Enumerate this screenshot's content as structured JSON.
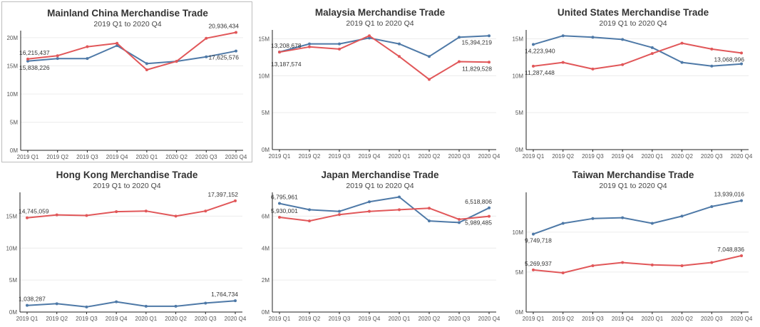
{
  "colors": {
    "blue": "#4e79a7",
    "red": "#e15759"
  },
  "chart_data": [
    {
      "type": "line",
      "title": "Mainland China Merchandise Trade",
      "subtitle": "2019 Q1 to 2020 Q4",
      "categories": [
        "2019 Q1",
        "2019 Q2",
        "2019 Q3",
        "2019 Q4",
        "2020 Q1",
        "2020 Q2",
        "2020 Q3",
        "2020 Q4"
      ],
      "ylim": [
        0,
        21000000
      ],
      "yticks": [
        0,
        5000000,
        10000000,
        15000000,
        20000000
      ],
      "ytick_labels": [
        "0M",
        "5M",
        "10M",
        "15M",
        "20M"
      ],
      "series": [
        {
          "color": "blue",
          "values": [
            15838226,
            16300000,
            16300000,
            18600000,
            15400000,
            15800000,
            16600000,
            17625576
          ]
        },
        {
          "color": "red",
          "values": [
            16215437,
            16800000,
            18400000,
            19000000,
            14300000,
            15800000,
            19900000,
            20936434
          ]
        }
      ],
      "labels": [
        {
          "text": "16,215,437",
          "series": 1,
          "point": 0,
          "pos": "above"
        },
        {
          "text": "15,838,226",
          "series": 0,
          "point": 0,
          "pos": "below"
        },
        {
          "text": "20,936,434",
          "series": 1,
          "point": 7,
          "pos": "above-left"
        },
        {
          "text": "17,625,576",
          "series": 0,
          "point": 7,
          "pos": "below"
        }
      ]
    },
    {
      "type": "line",
      "title": "Malaysia Merchandise Trade",
      "subtitle": "2019 Q1 to 2020 Q4",
      "categories": [
        "2019 Q1",
        "2019 Q2",
        "2019 Q3",
        "2019 Q4",
        "2020 Q1",
        "2020 Q2",
        "2020 Q3",
        "2020 Q4"
      ],
      "ylim": [
        0,
        16000000
      ],
      "yticks": [
        0,
        5000000,
        10000000,
        15000000
      ],
      "ytick_labels": [
        "0M",
        "5M",
        "10M",
        "15M"
      ],
      "series": [
        {
          "color": "blue",
          "values": [
            13208678,
            14300000,
            14300000,
            15100000,
            14300000,
            12600000,
            15200000,
            15394219
          ]
        },
        {
          "color": "red",
          "values": [
            13187574,
            13900000,
            13600000,
            15400000,
            12600000,
            9500000,
            11900000,
            11829528
          ]
        }
      ],
      "labels": [
        {
          "text": "13,208,678",
          "series": 0,
          "point": 0,
          "pos": "above"
        },
        {
          "text": "13,187,574",
          "series": 1,
          "point": 0,
          "pos": "below-far"
        },
        {
          "text": "15,394,219",
          "series": 0,
          "point": 7,
          "pos": "below"
        },
        {
          "text": "11,829,528",
          "series": 1,
          "point": 7,
          "pos": "below"
        }
      ]
    },
    {
      "type": "line",
      "title": "United States Merchandise Trade",
      "subtitle": "2019 Q1 to 2020 Q4",
      "categories": [
        "2019 Q1",
        "2019 Q2",
        "2019 Q3",
        "2019 Q4",
        "2020 Q1",
        "2020 Q2",
        "2020 Q3",
        "2020 Q4"
      ],
      "ylim": [
        0,
        16000000
      ],
      "yticks": [
        0,
        5000000,
        10000000,
        15000000
      ],
      "ytick_labels": [
        "0M",
        "5M",
        "10M",
        "15M"
      ],
      "series": [
        {
          "color": "blue",
          "values": [
            14223940,
            15400000,
            15200000,
            14900000,
            13800000,
            11800000,
            11300000,
            11600000
          ]
        },
        {
          "color": "red",
          "values": [
            11287448,
            11800000,
            10900000,
            11500000,
            13000000,
            14400000,
            13600000,
            13068996
          ]
        }
      ],
      "labels": [
        {
          "text": "14,223,940",
          "series": 0,
          "point": 0,
          "pos": "below"
        },
        {
          "text": "11,287,448",
          "series": 1,
          "point": 0,
          "pos": "below"
        },
        {
          "text": "13,068,996",
          "series": 1,
          "point": 7,
          "pos": "below"
        }
      ]
    },
    {
      "type": "line",
      "title": "Hong Kong Merchandise Trade",
      "subtitle": "2019 Q1 to 2020 Q4",
      "categories": [
        "2019 Q1",
        "2019 Q2",
        "2019 Q3",
        "2019 Q4",
        "2020 Q1",
        "2020 Q2",
        "2020 Q3",
        "2020 Q4"
      ],
      "ylim": [
        0,
        18500000
      ],
      "yticks": [
        0,
        5000000,
        10000000,
        15000000
      ],
      "ytick_labels": [
        "0M",
        "5M",
        "10M",
        "15M"
      ],
      "series": [
        {
          "color": "blue",
          "values": [
            1038287,
            1300000,
            800000,
            1600000,
            900000,
            900000,
            1400000,
            1764734
          ]
        },
        {
          "color": "red",
          "values": [
            14745059,
            15200000,
            15100000,
            15700000,
            15800000,
            15000000,
            15800000,
            17397152
          ]
        }
      ],
      "labels": [
        {
          "text": "14,745,059",
          "series": 1,
          "point": 0,
          "pos": "above"
        },
        {
          "text": "17,397,152",
          "series": 1,
          "point": 7,
          "pos": "above-left"
        },
        {
          "text": "1,038,287",
          "series": 0,
          "point": 0,
          "pos": "above"
        },
        {
          "text": "1,764,734",
          "series": 0,
          "point": 7,
          "pos": "above-left"
        }
      ]
    },
    {
      "type": "line",
      "title": "Japan Merchandise Trade",
      "subtitle": "2019 Q1 to 2020 Q4",
      "categories": [
        "2019 Q1",
        "2019 Q2",
        "2019 Q3",
        "2019 Q4",
        "2020 Q1",
        "2020 Q2",
        "2020 Q3",
        "2020 Q4"
      ],
      "ylim": [
        0,
        7400000
      ],
      "yticks": [
        0,
        2000000,
        4000000,
        6000000
      ],
      "ytick_labels": [
        "0M",
        "2M",
        "4M",
        "6M"
      ],
      "series": [
        {
          "color": "blue",
          "values": [
            6795961,
            6400000,
            6300000,
            6900000,
            7200000,
            5700000,
            5600000,
            6518806
          ]
        },
        {
          "color": "red",
          "values": [
            5930001,
            5700000,
            6100000,
            6300000,
            6400000,
            6500000,
            5800000,
            5989485
          ]
        }
      ],
      "labels": [
        {
          "text": "6,795,961",
          "series": 0,
          "point": 0,
          "pos": "above"
        },
        {
          "text": "5,930,001",
          "series": 1,
          "point": 0,
          "pos": "above"
        },
        {
          "text": "6,518,806",
          "series": 0,
          "point": 7,
          "pos": "above-left"
        },
        {
          "text": "5,989,485",
          "series": 1,
          "point": 7,
          "pos": "below"
        }
      ]
    },
    {
      "type": "line",
      "title": "Taiwan Merchandise Trade",
      "subtitle": "2019 Q1 to 2020 Q4",
      "categories": [
        "2019 Q1",
        "2019 Q2",
        "2019 Q3",
        "2019 Q4",
        "2020 Q1",
        "2020 Q2",
        "2020 Q3",
        "2020 Q4"
      ],
      "ylim": [
        0,
        14800000
      ],
      "yticks": [
        0,
        5000000,
        10000000
      ],
      "ytick_labels": [
        "0M",
        "5M",
        "10M"
      ],
      "series": [
        {
          "color": "blue",
          "values": [
            9749718,
            11100000,
            11700000,
            11800000,
            11100000,
            12000000,
            13200000,
            13939016
          ]
        },
        {
          "color": "red",
          "values": [
            5269937,
            4900000,
            5800000,
            6200000,
            5900000,
            5800000,
            6200000,
            7048836
          ]
        }
      ],
      "labels": [
        {
          "text": "9,749,718",
          "series": 0,
          "point": 0,
          "pos": "below"
        },
        {
          "text": "13,939,016",
          "series": 0,
          "point": 7,
          "pos": "above-left"
        },
        {
          "text": "5,269,937",
          "series": 1,
          "point": 0,
          "pos": "above"
        },
        {
          "text": "7,048,836",
          "series": 1,
          "point": 7,
          "pos": "above-left"
        }
      ]
    }
  ]
}
